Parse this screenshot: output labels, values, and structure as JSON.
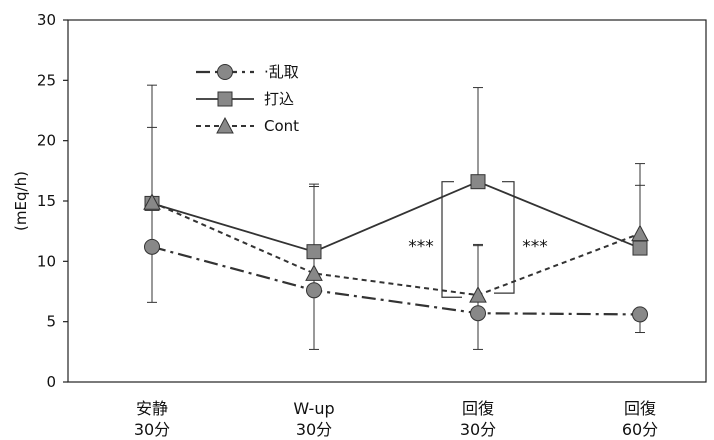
{
  "chart_data": {
    "type": "line",
    "ylabel": "(mEq/h)",
    "ylim": [
      0,
      30
    ],
    "yticks": [
      0,
      5,
      10,
      15,
      20,
      25,
      30
    ],
    "categories": [
      {
        "line1": "安静",
        "line2": "30分"
      },
      {
        "line1": "W-up",
        "line2": "30分"
      },
      {
        "line1": "回復",
        "line2": "30分"
      },
      {
        "line1": "回復",
        "line2": "60分"
      }
    ],
    "series": [
      {
        "name": "乱取",
        "marker": "circle",
        "dash": "dashdot",
        "values": [
          11.2,
          7.6,
          5.7,
          5.6
        ],
        "err_upper": [
          21.1,
          16.2,
          11.3,
          5.6
        ],
        "err_lower": [
          6.6,
          2.7,
          2.7,
          4.1
        ]
      },
      {
        "name": "打込",
        "marker": "square",
        "dash": "solid",
        "values": [
          14.8,
          10.8,
          16.6,
          11.1
        ],
        "err_upper": [
          24.6,
          16.4,
          24.4,
          16.3
        ],
        "err_lower": [
          14.8,
          10.8,
          16.6,
          11.1
        ]
      },
      {
        "name": "Cont",
        "marker": "triangle",
        "dash": "dotted",
        "values": [
          14.9,
          9.0,
          7.2,
          12.3
        ],
        "err_upper": [
          14.9,
          9.0,
          11.4,
          18.1
        ],
        "err_lower": [
          14.9,
          9.0,
          7.2,
          12.3
        ]
      }
    ],
    "annotations": [
      {
        "text": "***",
        "between": [
          "打込",
          "乱取"
        ],
        "category_index": 2,
        "side": "left"
      },
      {
        "text": "***",
        "between": [
          "打込",
          "Cont"
        ],
        "category_index": 2,
        "side": "right"
      }
    ],
    "legend_position": "top-left",
    "grid": false
  }
}
